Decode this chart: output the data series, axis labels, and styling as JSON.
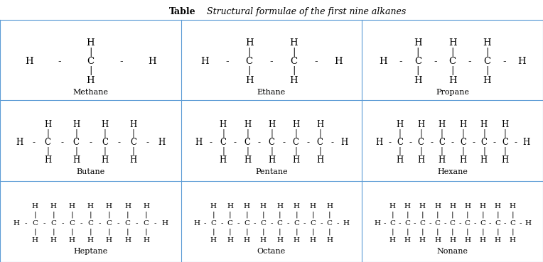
{
  "title_bold": "Table",
  "title_italic": "Structural formulae of the first nine alkanes",
  "background_color": "#ffffff",
  "grid_color": "#5b9bd5",
  "alkanes": [
    {
      "name": "Methane",
      "n_carbons": 1,
      "row": 0,
      "col": 0
    },
    {
      "name": "Ethane",
      "n_carbons": 2,
      "row": 0,
      "col": 1
    },
    {
      "name": "Propane",
      "n_carbons": 3,
      "row": 0,
      "col": 2
    },
    {
      "name": "Butane",
      "n_carbons": 4,
      "row": 1,
      "col": 0
    },
    {
      "name": "Pentane",
      "n_carbons": 5,
      "row": 1,
      "col": 1
    },
    {
      "name": "Hexane",
      "n_carbons": 6,
      "row": 1,
      "col": 2
    },
    {
      "name": "Heptane",
      "n_carbons": 7,
      "row": 2,
      "col": 0
    },
    {
      "name": "Octane",
      "n_carbons": 8,
      "row": 2,
      "col": 1
    },
    {
      "name": "Nonane",
      "n_carbons": 9,
      "row": 2,
      "col": 2
    }
  ],
  "text_color": "#000000",
  "title_fontsize": 9,
  "name_fontsize": 8
}
